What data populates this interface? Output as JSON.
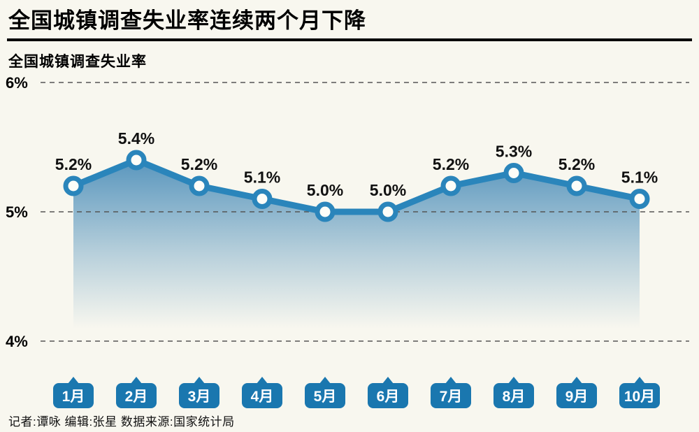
{
  "page": {
    "background": "#f8f7ef",
    "title": "全国城镇调查失业率连续两个月下降",
    "subtitle": "全国城镇调查失业率",
    "credits": "记者:谭咏  编辑:张星  数据来源:国家统计局"
  },
  "chart_data": {
    "type": "line",
    "title": "全国城镇调查失业率",
    "categories": [
      "1月",
      "2月",
      "3月",
      "4月",
      "5月",
      "6月",
      "7月",
      "8月",
      "9月",
      "10月"
    ],
    "values": [
      5.2,
      5.4,
      5.2,
      5.1,
      5.0,
      5.0,
      5.2,
      5.3,
      5.2,
      5.1
    ],
    "point_labels": [
      "5.2%",
      "5.4%",
      "5.2%",
      "5.1%",
      "5.0%",
      "5.0%",
      "5.2%",
      "5.3%",
      "5.2%",
      "5.1%"
    ],
    "unit": "%",
    "ylim": [
      4,
      6
    ],
    "yticks": [
      {
        "value": 6,
        "label": "6%"
      },
      {
        "value": 5,
        "label": "5%"
      },
      {
        "value": 4,
        "label": "4%"
      }
    ],
    "grid": "horizontal-dashed",
    "legend": "none",
    "area_fill": "vertical gradient blue to transparent",
    "colors": {
      "line": "#2a85bb",
      "marker_fill": "#fdfdf8",
      "area": "#3d85b5",
      "month_tag": "#1a77af",
      "month_tag_text": "#ffffff",
      "label_text": "#111111",
      "grid_line": "#555555"
    }
  }
}
